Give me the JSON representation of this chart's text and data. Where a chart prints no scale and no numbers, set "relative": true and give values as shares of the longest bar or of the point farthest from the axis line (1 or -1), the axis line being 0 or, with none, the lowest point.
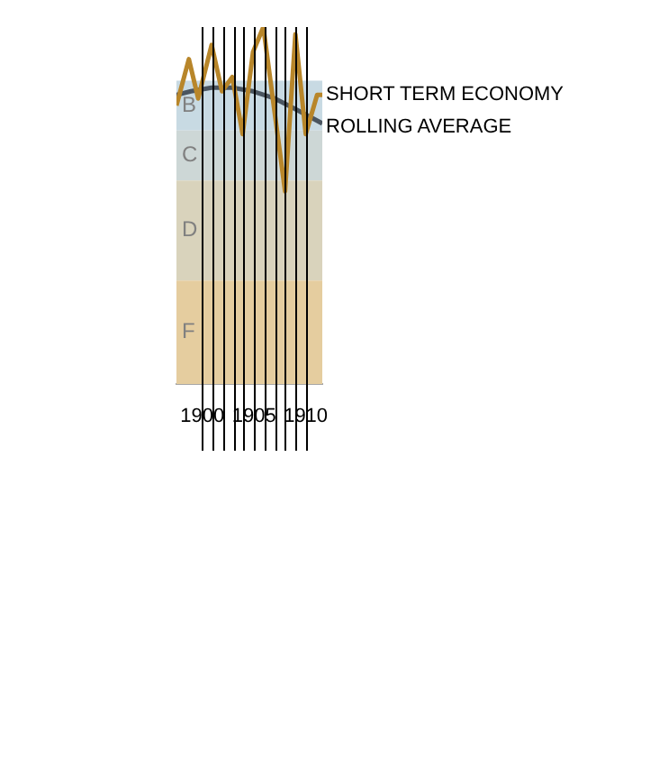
{
  "chart_data": {
    "type": "line",
    "relative": true,
    "xlim": [
      1897.5,
      1911.6
    ],
    "xticks": [
      1900,
      1905,
      1910
    ],
    "series": [
      {
        "name": "SHORT TERM ECONOMY",
        "color": "#b8862a",
        "x": [
          1897.5,
          1898.7,
          1899.6,
          1900.9,
          1901.9,
          1902.9,
          1903.9,
          1904.9,
          1905.9,
          1908.0,
          1909.0,
          1910.0,
          1911.1,
          1911.6
        ],
        "values": [
          0.78,
          0.91,
          0.8,
          0.95,
          0.82,
          0.86,
          0.7,
          0.93,
          1.0,
          0.54,
          0.98,
          0.7,
          0.81,
          0.81
        ]
      },
      {
        "name": "ROLLING AVERAGE",
        "color": "#4a5560",
        "x": [
          1897.5,
          1898.9,
          1900.9,
          1902.9,
          1904.9,
          1907.0,
          1909.0,
          1911.6
        ],
        "values": [
          0.81,
          0.82,
          0.83,
          0.83,
          0.82,
          0.8,
          0.77,
          0.73
        ]
      }
    ],
    "bands": [
      {
        "axis": "y",
        "from": 0.71,
        "to": 0.85,
        "label": "B",
        "color": "#c8dae3"
      },
      {
        "axis": "y",
        "from": 0.57,
        "to": 0.71,
        "label": "C",
        "color": "#cdd7d6"
      },
      {
        "axis": "y",
        "from": 0.29,
        "to": 0.57,
        "label": "D",
        "color": "#d9d3bc"
      },
      {
        "axis": "y",
        "from": 0,
        "to": 0.29,
        "label": "F",
        "color": "#e5cd9f"
      }
    ],
    "ref_lines": [
      {
        "axis": "x",
        "value": 1900,
        "color": "#000000"
      },
      {
        "axis": "x",
        "value": 1901,
        "color": "#000000"
      },
      {
        "axis": "x",
        "value": 1902,
        "color": "#000000"
      },
      {
        "axis": "x",
        "value": 1903,
        "color": "#000000"
      },
      {
        "axis": "x",
        "value": 1904,
        "color": "#000000"
      },
      {
        "axis": "x",
        "value": 1905,
        "color": "#000000"
      },
      {
        "axis": "x",
        "value": 1906,
        "color": "#000000"
      },
      {
        "axis": "x",
        "value": 1907,
        "color": "#000000"
      },
      {
        "axis": "x",
        "value": 1908,
        "color": "#000000"
      },
      {
        "axis": "x",
        "value": 1909,
        "color": "#000000"
      },
      {
        "axis": "x",
        "value": 1910,
        "color": "#000000"
      }
    ]
  }
}
